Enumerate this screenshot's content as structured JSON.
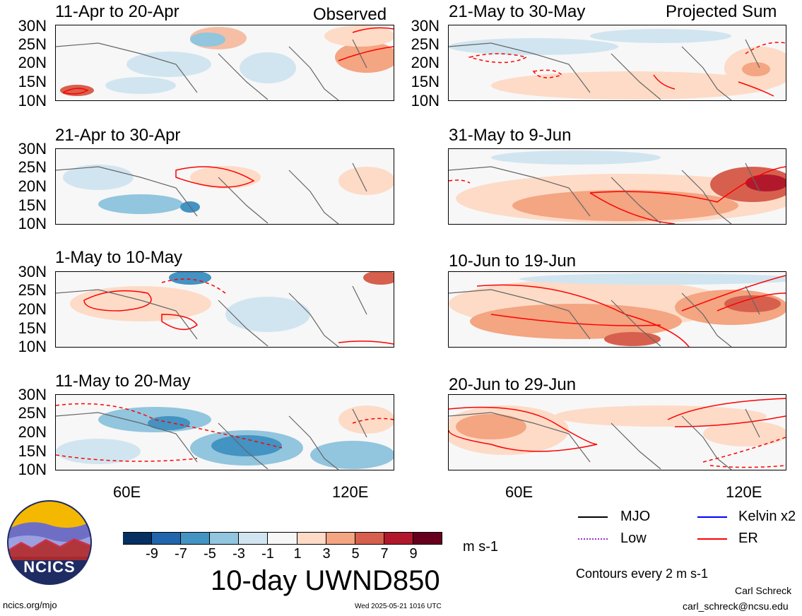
{
  "header": {
    "left_label": "Observed",
    "right_label": "Projected Sum"
  },
  "panels": {
    "left": [
      {
        "title": "11-Apr to 20-Apr"
      },
      {
        "title": "21-Apr to 30-Apr"
      },
      {
        "title": "1-May to 10-May"
      },
      {
        "title": "11-May to 20-May"
      }
    ],
    "right": [
      {
        "title": "21-May to 30-May"
      },
      {
        "title": "31-May to 9-Jun"
      },
      {
        "title": "10-Jun to 19-Jun"
      },
      {
        "title": "20-Jun to 29-Jun"
      }
    ]
  },
  "axes": {
    "lat_ticks": [
      "30N",
      "25N",
      "20N",
      "15N",
      "10N"
    ],
    "lon_ticks": [
      "60E",
      "120E"
    ]
  },
  "colorbar": {
    "labels": [
      "-9",
      "-7",
      "-5",
      "-3",
      "-1",
      "1",
      "3",
      "5",
      "7",
      "9"
    ],
    "units": "m s-1",
    "colors": [
      "#053061",
      "#2166ac",
      "#4393c3",
      "#92c5de",
      "#d1e5f0",
      "#f7f7f7",
      "#fddbc7",
      "#f4a582",
      "#d6604d",
      "#b2182b",
      "#67001f"
    ]
  },
  "main_title": "10-day UWND850",
  "legend": {
    "items": [
      {
        "label": "MJO",
        "color": "#000000",
        "style": "solid"
      },
      {
        "label": "Kelvin x2",
        "color": "#0000ff",
        "style": "solid"
      },
      {
        "label": "Low",
        "color": "#9932cc",
        "style": "dotted"
      },
      {
        "label": "ER",
        "color": "#ff0000",
        "style": "solid"
      }
    ],
    "contour_note": "Contours every 2 m s-1"
  },
  "logo": {
    "text": "NCICS"
  },
  "footer": {
    "url": "ncics.org/mjo",
    "timestamp": "Wed 2025-05-21 1016 UTC",
    "author": "Carl Schreck",
    "email": "carl_schreck@ncsu.edu"
  }
}
